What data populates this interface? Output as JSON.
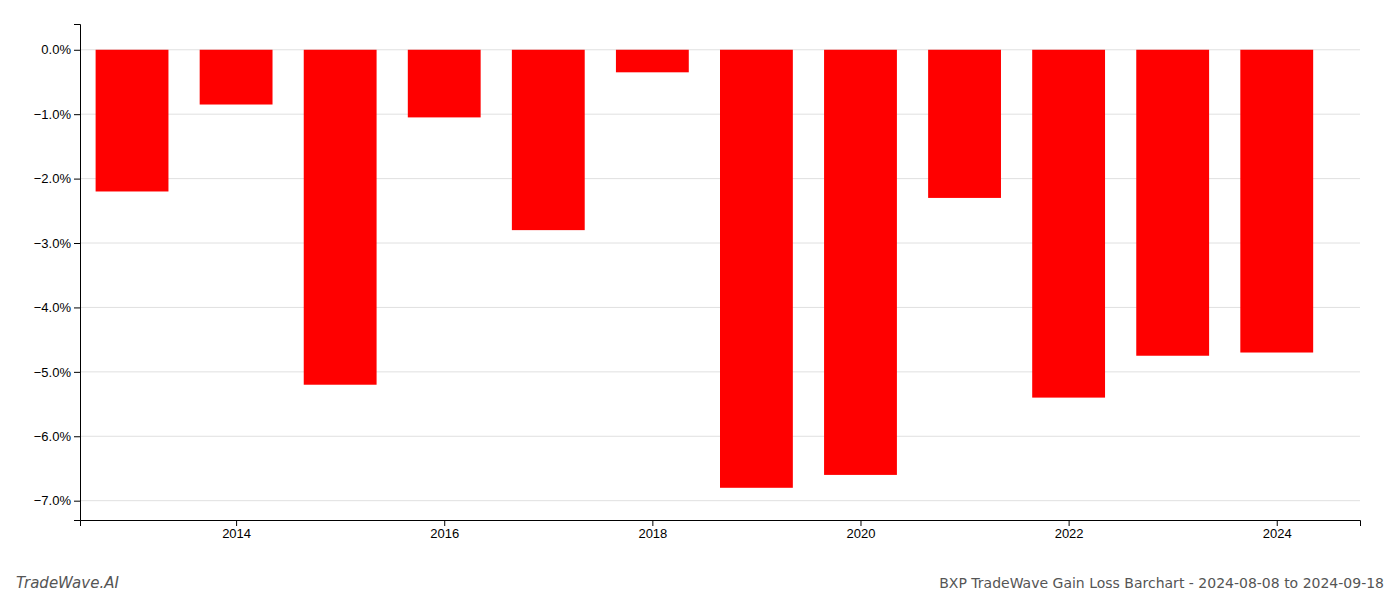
{
  "chart_data": {
    "type": "bar",
    "title": "BXP TradeWave Gain Loss Barchart - 2024-08-08 to 2024-09-18",
    "annotations": [
      "TradeWave.AI"
    ],
    "x": [
      2013,
      2014,
      2015,
      2016,
      2017,
      2018,
      2019,
      2020,
      2021,
      2022,
      2023,
      2024
    ],
    "values": [
      -0.022,
      -0.0085,
      -0.052,
      -0.0105,
      -0.028,
      -0.0035,
      -0.068,
      -0.066,
      -0.023,
      -0.054,
      -0.0475,
      -0.047
    ],
    "color": "#ff0000",
    "xlim": [
      2012.5,
      2024.8
    ],
    "xticks": [
      2014,
      2016,
      2018,
      2020,
      2022,
      2024
    ],
    "ylim": [
      -0.073,
      0.004
    ],
    "yticks": [
      {
        "value": 0.0,
        "label": "0.0%"
      },
      {
        "value": -0.01,
        "label": "−1.0%"
      },
      {
        "value": -0.02,
        "label": "−2.0%"
      },
      {
        "value": -0.03,
        "label": "−3.0%"
      },
      {
        "value": -0.04,
        "label": "−4.0%"
      },
      {
        "value": -0.05,
        "label": "−5.0%"
      },
      {
        "value": -0.06,
        "label": "−6.0%"
      },
      {
        "value": -0.07,
        "label": "−7.0%"
      }
    ],
    "grid": true
  }
}
